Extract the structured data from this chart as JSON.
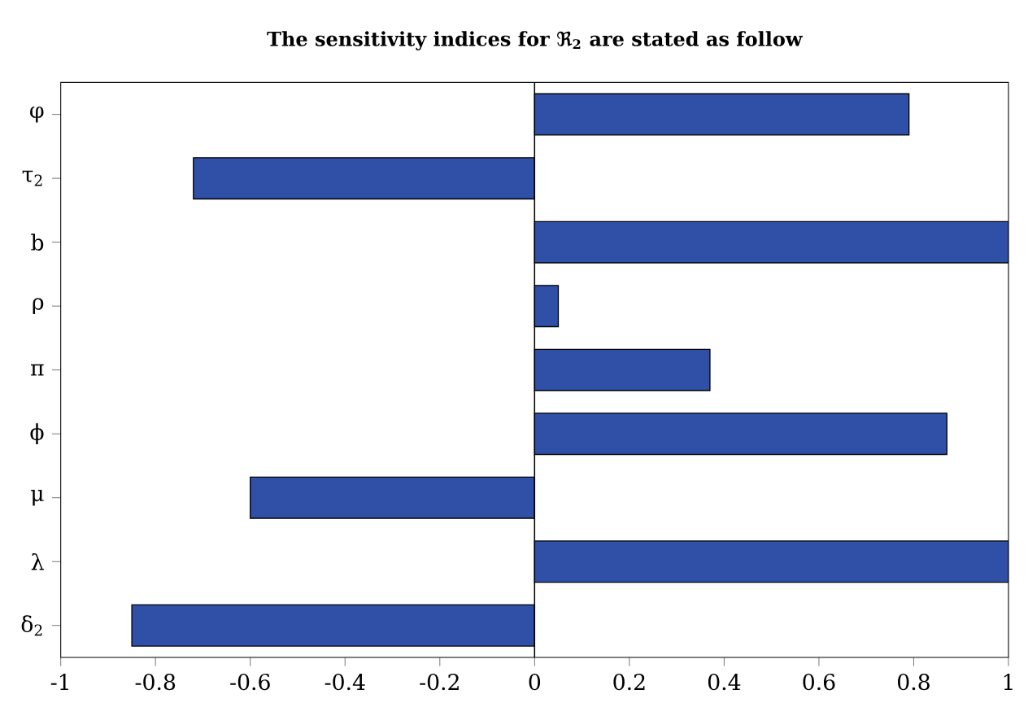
{
  "chart_data": {
    "type": "bar",
    "orientation": "horizontal",
    "title": "The sensitivity indices for ℜ$_{2}$ are stated as follow",
    "categories": [
      "φ",
      "τ$_{2}$",
      "b",
      "ρ",
      "π",
      "ϕ",
      "μ",
      "λ",
      "δ$_{2}$"
    ],
    "values": [
      0.79,
      -0.72,
      1.0,
      0.05,
      0.37,
      0.87,
      -0.6,
      1.0,
      -0.85
    ],
    "color": "#3050a8",
    "xlim": [
      -1,
      1
    ],
    "xticks": [
      -1,
      -0.8,
      -0.6,
      -0.4,
      -0.2,
      0,
      0.2,
      0.4,
      0.6,
      0.8,
      1
    ],
    "ref_lines": [
      {
        "axis": "x",
        "value": 0
      }
    ]
  }
}
